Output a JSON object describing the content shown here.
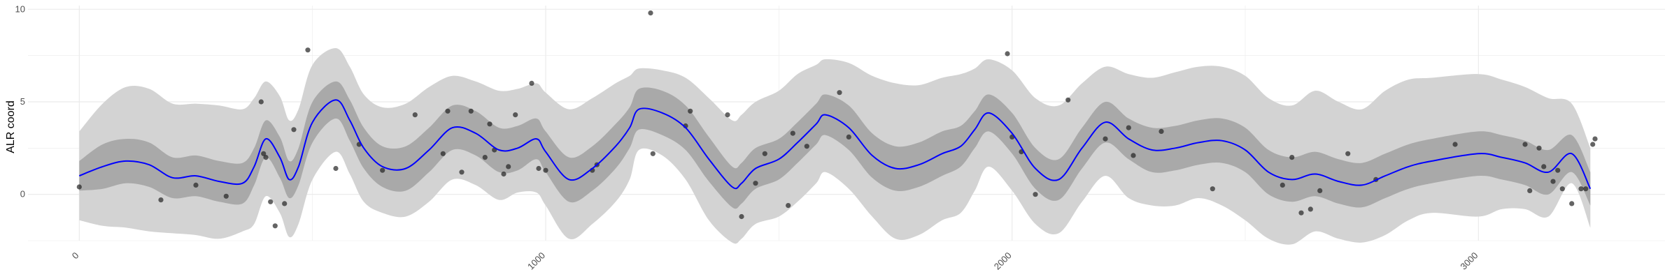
{
  "chart_data": {
    "type": "line",
    "title": "",
    "xlabel": "",
    "ylabel": "ALR coord",
    "xlim": [
      -110,
      3400
    ],
    "ylim": [
      -2.5,
      10.2
    ],
    "x_ticks": [
      0,
      1000,
      2000,
      3000
    ],
    "x_tick_labels": [
      "0",
      "1000",
      "2000",
      "3000"
    ],
    "y_ticks": [
      0,
      5,
      10
    ],
    "y_tick_labels": [
      "0",
      "5",
      "10"
    ],
    "grid": true,
    "legend": "none",
    "colors": {
      "mean_line": "#0000ff",
      "inner_band": "#a9a9a9",
      "outer_band": "#d3d3d3",
      "points": "#222222",
      "grid": "#ebebeb"
    },
    "series": [
      {
        "kind": "mean",
        "x": [
          0,
          50,
          100,
          150,
          200,
          250,
          300,
          350,
          375,
          400,
          430,
          450,
          470,
          500,
          550,
          580,
          610,
          650,
          700,
          750,
          800,
          850,
          900,
          940,
          980,
          1000,
          1050,
          1100,
          1150,
          1180,
          1200,
          1250,
          1300,
          1350,
          1400,
          1420,
          1450,
          1500,
          1540,
          1580,
          1600,
          1650,
          1700,
          1750,
          1800,
          1850,
          1890,
          1920,
          1950,
          2000,
          2050,
          2100,
          2150,
          2200,
          2250,
          2300,
          2350,
          2400,
          2450,
          2500,
          2550,
          2600,
          2650,
          2700,
          2750,
          2800,
          2850,
          2900,
          3000,
          3050,
          3100,
          3150,
          3200,
          3240
        ],
        "y": [
          1.0,
          1.5,
          1.8,
          1.6,
          0.9,
          1.0,
          0.7,
          0.6,
          1.5,
          3.0,
          2.0,
          0.8,
          1.5,
          3.9,
          5.1,
          4.0,
          2.5,
          1.5,
          1.4,
          2.4,
          3.6,
          3.3,
          2.4,
          2.5,
          3.0,
          2.3,
          0.8,
          1.4,
          2.6,
          3.6,
          4.6,
          4.4,
          3.6,
          1.9,
          0.4,
          0.6,
          1.4,
          1.9,
          2.8,
          3.8,
          4.3,
          3.6,
          2.1,
          1.4,
          1.6,
          2.2,
          2.6,
          3.5,
          4.4,
          3.3,
          1.4,
          0.8,
          2.5,
          3.9,
          3.0,
          2.4,
          2.5,
          2.8,
          2.9,
          2.4,
          1.2,
          0.8,
          1.1,
          0.7,
          0.5,
          1.0,
          1.5,
          1.8,
          2.2,
          2.0,
          1.7,
          1.2,
          2.2,
          0.3
        ]
      },
      {
        "kind": "inner-band",
        "x": [
          0,
          50,
          100,
          150,
          200,
          250,
          300,
          350,
          375,
          400,
          430,
          450,
          470,
          500,
          550,
          580,
          610,
          650,
          700,
          750,
          800,
          850,
          900,
          940,
          980,
          1000,
          1050,
          1100,
          1150,
          1180,
          1200,
          1250,
          1300,
          1350,
          1400,
          1420,
          1450,
          1500,
          1540,
          1580,
          1600,
          1650,
          1700,
          1750,
          1800,
          1850,
          1890,
          1920,
          1950,
          2000,
          2050,
          2100,
          2150,
          2200,
          2250,
          2300,
          2350,
          2400,
          2450,
          2500,
          2550,
          2600,
          2650,
          2700,
          2750,
          2800,
          2850,
          2900,
          3000,
          3050,
          3100,
          3150,
          3200,
          3240
        ],
        "upper": [
          1.8,
          2.7,
          3.0,
          2.8,
          2.0,
          2.1,
          1.8,
          1.7,
          2.5,
          4.0,
          3.1,
          1.8,
          2.5,
          5.0,
          6.1,
          5.1,
          3.6,
          2.6,
          2.6,
          3.6,
          4.8,
          4.5,
          3.6,
          3.7,
          4.1,
          3.4,
          2.0,
          2.6,
          3.8,
          4.7,
          5.7,
          5.6,
          4.8,
          3.1,
          1.5,
          1.7,
          2.5,
          3.0,
          3.9,
          4.9,
          5.4,
          4.8,
          3.3,
          2.6,
          2.8,
          3.4,
          3.7,
          4.5,
          5.4,
          4.4,
          2.5,
          1.9,
          3.6,
          5.0,
          4.1,
          3.6,
          3.7,
          4.0,
          4.1,
          3.6,
          2.4,
          2.0,
          2.3,
          1.9,
          1.7,
          2.2,
          2.7,
          3.0,
          3.4,
          3.2,
          2.9,
          2.4,
          3.2,
          1.2
        ],
        "lower": [
          0.2,
          0.3,
          0.6,
          0.4,
          -0.2,
          -0.1,
          -0.4,
          -0.5,
          0.5,
          2.0,
          0.9,
          -0.2,
          0.5,
          2.8,
          4.1,
          2.9,
          1.4,
          0.4,
          0.2,
          1.2,
          2.4,
          2.1,
          1.2,
          1.3,
          1.9,
          1.2,
          -0.4,
          0.2,
          1.4,
          2.5,
          3.5,
          3.2,
          2.4,
          0.7,
          -0.7,
          -0.5,
          0.3,
          0.8,
          1.7,
          2.7,
          3.2,
          2.4,
          0.9,
          0.2,
          0.4,
          1.0,
          1.5,
          2.5,
          3.4,
          2.2,
          0.3,
          -0.3,
          1.4,
          2.8,
          1.9,
          1.2,
          1.3,
          1.6,
          1.7,
          1.2,
          0.0,
          -0.4,
          -0.1,
          -0.5,
          -0.7,
          -0.2,
          0.3,
          0.6,
          1.0,
          0.8,
          0.5,
          0.0,
          1.2,
          -0.6
        ]
      },
      {
        "kind": "outer-band",
        "x": [
          0,
          50,
          100,
          150,
          200,
          250,
          300,
          350,
          375,
          400,
          430,
          450,
          470,
          500,
          550,
          580,
          610,
          650,
          700,
          750,
          800,
          850,
          900,
          940,
          980,
          1000,
          1050,
          1100,
          1150,
          1180,
          1200,
          1250,
          1300,
          1350,
          1400,
          1420,
          1450,
          1500,
          1540,
          1580,
          1600,
          1650,
          1700,
          1750,
          1800,
          1850,
          1890,
          1920,
          1950,
          2000,
          2050,
          2100,
          2150,
          2200,
          2250,
          2300,
          2350,
          2400,
          2450,
          2500,
          2550,
          2600,
          2650,
          2700,
          2750,
          2800,
          2850,
          2900,
          3000,
          3050,
          3100,
          3150,
          3200,
          3240
        ],
        "upper": [
          3.4,
          4.9,
          5.8,
          5.7,
          4.9,
          4.9,
          4.8,
          4.6,
          5.2,
          6.1,
          5.3,
          4.0,
          4.6,
          7.0,
          7.9,
          6.9,
          5.4,
          4.7,
          4.9,
          5.8,
          6.4,
          6.1,
          5.6,
          5.7,
          6.0,
          5.5,
          4.6,
          5.2,
          6.0,
          6.4,
          6.8,
          6.7,
          6.3,
          5.2,
          4.0,
          4.3,
          5.0,
          5.6,
          6.5,
          7.0,
          7.3,
          7.1,
          6.4,
          6.0,
          5.9,
          6.3,
          6.5,
          6.8,
          7.3,
          6.7,
          5.2,
          4.8,
          6.0,
          6.9,
          6.5,
          6.3,
          6.6,
          6.9,
          6.9,
          6.4,
          5.2,
          4.8,
          5.6,
          5.0,
          4.6,
          5.6,
          6.2,
          6.3,
          6.5,
          6.2,
          5.8,
          5.2,
          4.9,
          2.5
        ],
        "lower": [
          -1.4,
          -1.7,
          -1.8,
          -2.0,
          -2.1,
          -2.2,
          -2.4,
          -2.0,
          -1.6,
          -0.1,
          -1.0,
          -2.3,
          -1.6,
          0.8,
          2.3,
          1.1,
          -0.4,
          -1.0,
          -1.2,
          -0.4,
          0.8,
          0.5,
          -0.3,
          0.1,
          0.1,
          -0.6,
          -2.4,
          -1.6,
          -0.4,
          0.8,
          2.4,
          2.1,
          0.8,
          -1.4,
          -2.6,
          -2.4,
          -1.6,
          -1.2,
          -0.4,
          0.6,
          1.2,
          0.3,
          -1.2,
          -2.4,
          -2.2,
          -1.4,
          -1.0,
          0.2,
          1.5,
          0.2,
          -1.6,
          -2.1,
          -0.4,
          1.0,
          -0.2,
          -0.6,
          -0.6,
          -0.2,
          -0.6,
          -1.4,
          -2.4,
          -2.7,
          -2.0,
          -2.4,
          -2.6,
          -2.2,
          -1.4,
          -1.0,
          -1.2,
          -0.8,
          -0.8,
          -1.2,
          0.6,
          -1.8
        ]
      },
      {
        "kind": "points",
        "x": [
          0,
          175,
          250,
          315,
          390,
          395,
          400,
          410,
          420,
          440,
          460,
          490,
          550,
          600,
          650,
          720,
          780,
          790,
          820,
          840,
          870,
          880,
          890,
          910,
          920,
          935,
          970,
          985,
          1000,
          1100,
          1110,
          1225,
          1230,
          1300,
          1310,
          1390,
          1420,
          1450,
          1470,
          1520,
          1530,
          1560,
          1630,
          1650,
          1990,
          2000,
          2020,
          2050,
          2120,
          2200,
          2250,
          2260,
          2320,
          2430,
          2580,
          2600,
          2620,
          2640,
          2660,
          2720,
          2780,
          2950,
          3100,
          3110,
          3130,
          3140,
          3160,
          3170,
          3180,
          3200,
          3220,
          3230,
          3245,
          3250
        ],
        "y": [
          0.4,
          -0.3,
          0.5,
          -0.1,
          5.0,
          2.2,
          2.0,
          -0.4,
          -1.7,
          -0.5,
          3.5,
          7.8,
          1.4,
          2.7,
          1.3,
          4.3,
          2.2,
          4.5,
          1.2,
          4.5,
          2.0,
          3.8,
          2.4,
          1.1,
          1.5,
          4.3,
          6.0,
          1.4,
          1.3,
          1.3,
          1.6,
          9.8,
          2.2,
          3.7,
          4.5,
          4.3,
          -1.2,
          0.6,
          2.2,
          -0.6,
          3.3,
          2.6,
          5.5,
          3.1,
          7.6,
          3.1,
          2.3,
          0.0,
          5.1,
          3.0,
          3.6,
          2.1,
          3.4,
          0.3,
          0.5,
          2.0,
          -1.0,
          -0.8,
          0.2,
          2.2,
          0.8,
          2.7,
          2.7,
          0.2,
          2.5,
          1.5,
          0.7,
          1.3,
          0.3,
          -0.5,
          0.3,
          0.3,
          2.7,
          3.0
        ]
      }
    ]
  }
}
